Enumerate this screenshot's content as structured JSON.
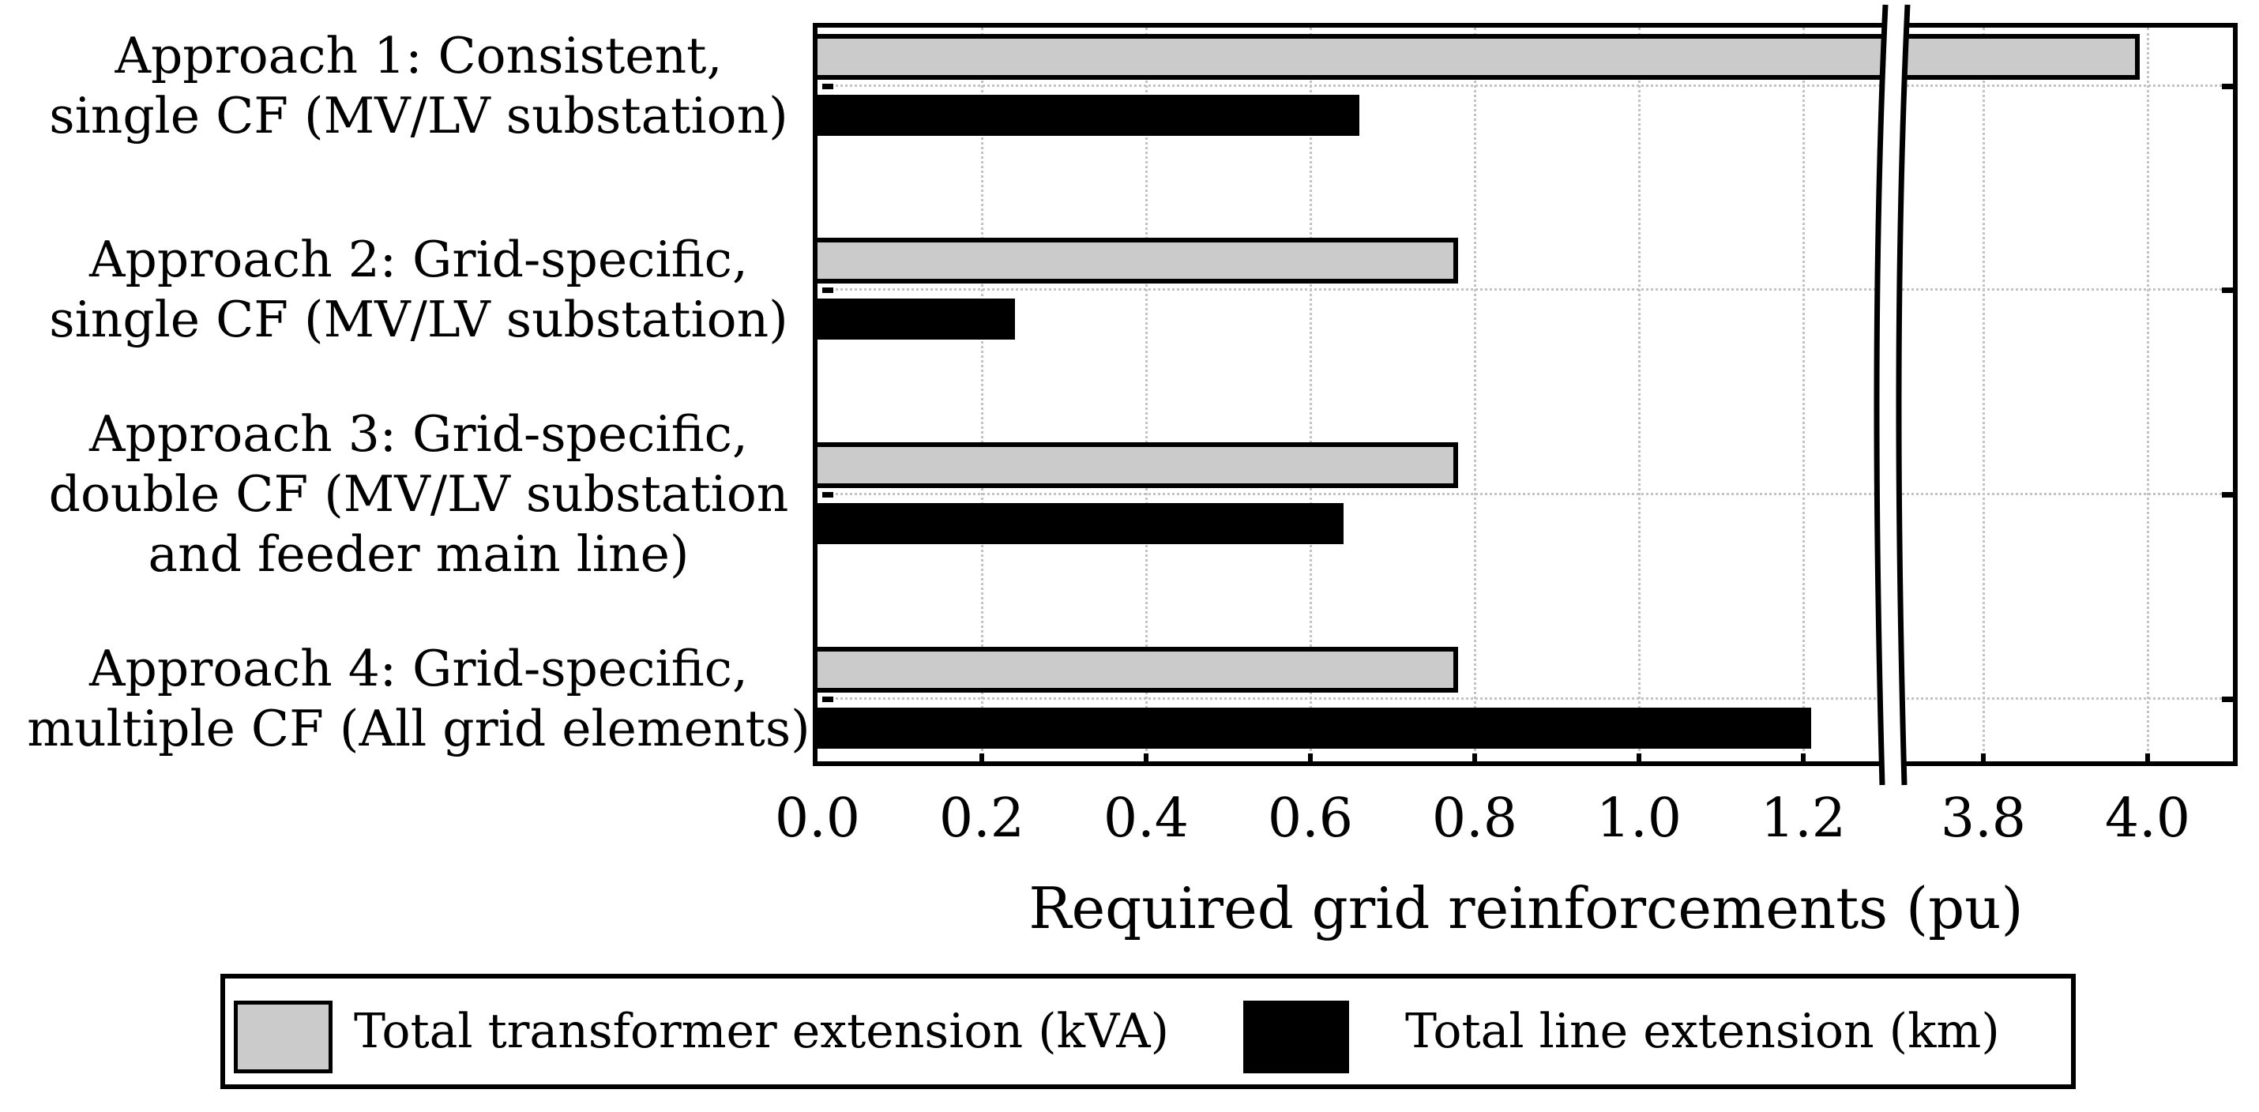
{
  "page": {
    "background": "#ffffff"
  },
  "chart_data": {
    "type": "bar",
    "orientation": "horizontal",
    "title": "",
    "xlabel": "Required grid reinforcements (pu)",
    "categories": [
      {
        "label": "Approach 1: Consistent, single CF (MV/LV substation)",
        "lines": [
          "Approach 1: Consistent,",
          "single CF (MV/LV substation)"
        ]
      },
      {
        "label": "Approach 2: Grid-specific, single CF (MV/LV substation)",
        "lines": [
          "Approach 2: Grid-specific,",
          "single CF (MV/LV substation)"
        ]
      },
      {
        "label": "Approach 3: Grid-specific, double CF (MV/LV substation and feeder main line)",
        "lines": [
          "Approach 3: Grid-specific,",
          "double CF (MV/LV substation",
          "and feeder main line)"
        ]
      },
      {
        "label": "Approach 4: Grid-specific, multiple CF (All grid elements)",
        "lines": [
          "Approach 4: Grid-specific,",
          "multiple CF (All grid elements)"
        ]
      }
    ],
    "series": [
      {
        "name": "Total transformer extension (kVA)",
        "color": "#cbcbcb",
        "values": [
          3.99,
          0.78,
          0.78,
          0.78
        ]
      },
      {
        "name": "Total line extension (km)",
        "color": "#000000",
        "values": [
          0.66,
          0.24,
          0.64,
          1.21
        ]
      }
    ],
    "x_ticks": [
      0.0,
      0.2,
      0.4,
      0.6,
      0.8,
      1.0,
      1.2,
      3.8,
      4.0
    ],
    "x_tick_labels": [
      "0.0",
      "0.2",
      "0.4",
      "0.6",
      "0.8",
      "1.0",
      "1.2",
      "3.8",
      "4.0"
    ],
    "xlim": [
      0,
      4.11
    ],
    "axis_break": {
      "from": 1.3,
      "to": 3.7
    },
    "grid": "dotted",
    "legend": {
      "position": "bottom"
    },
    "colors": {
      "bar_gray": "#cbcbcb",
      "bar_black": "#000000",
      "grid_dotted": "#c3c3c3"
    }
  }
}
